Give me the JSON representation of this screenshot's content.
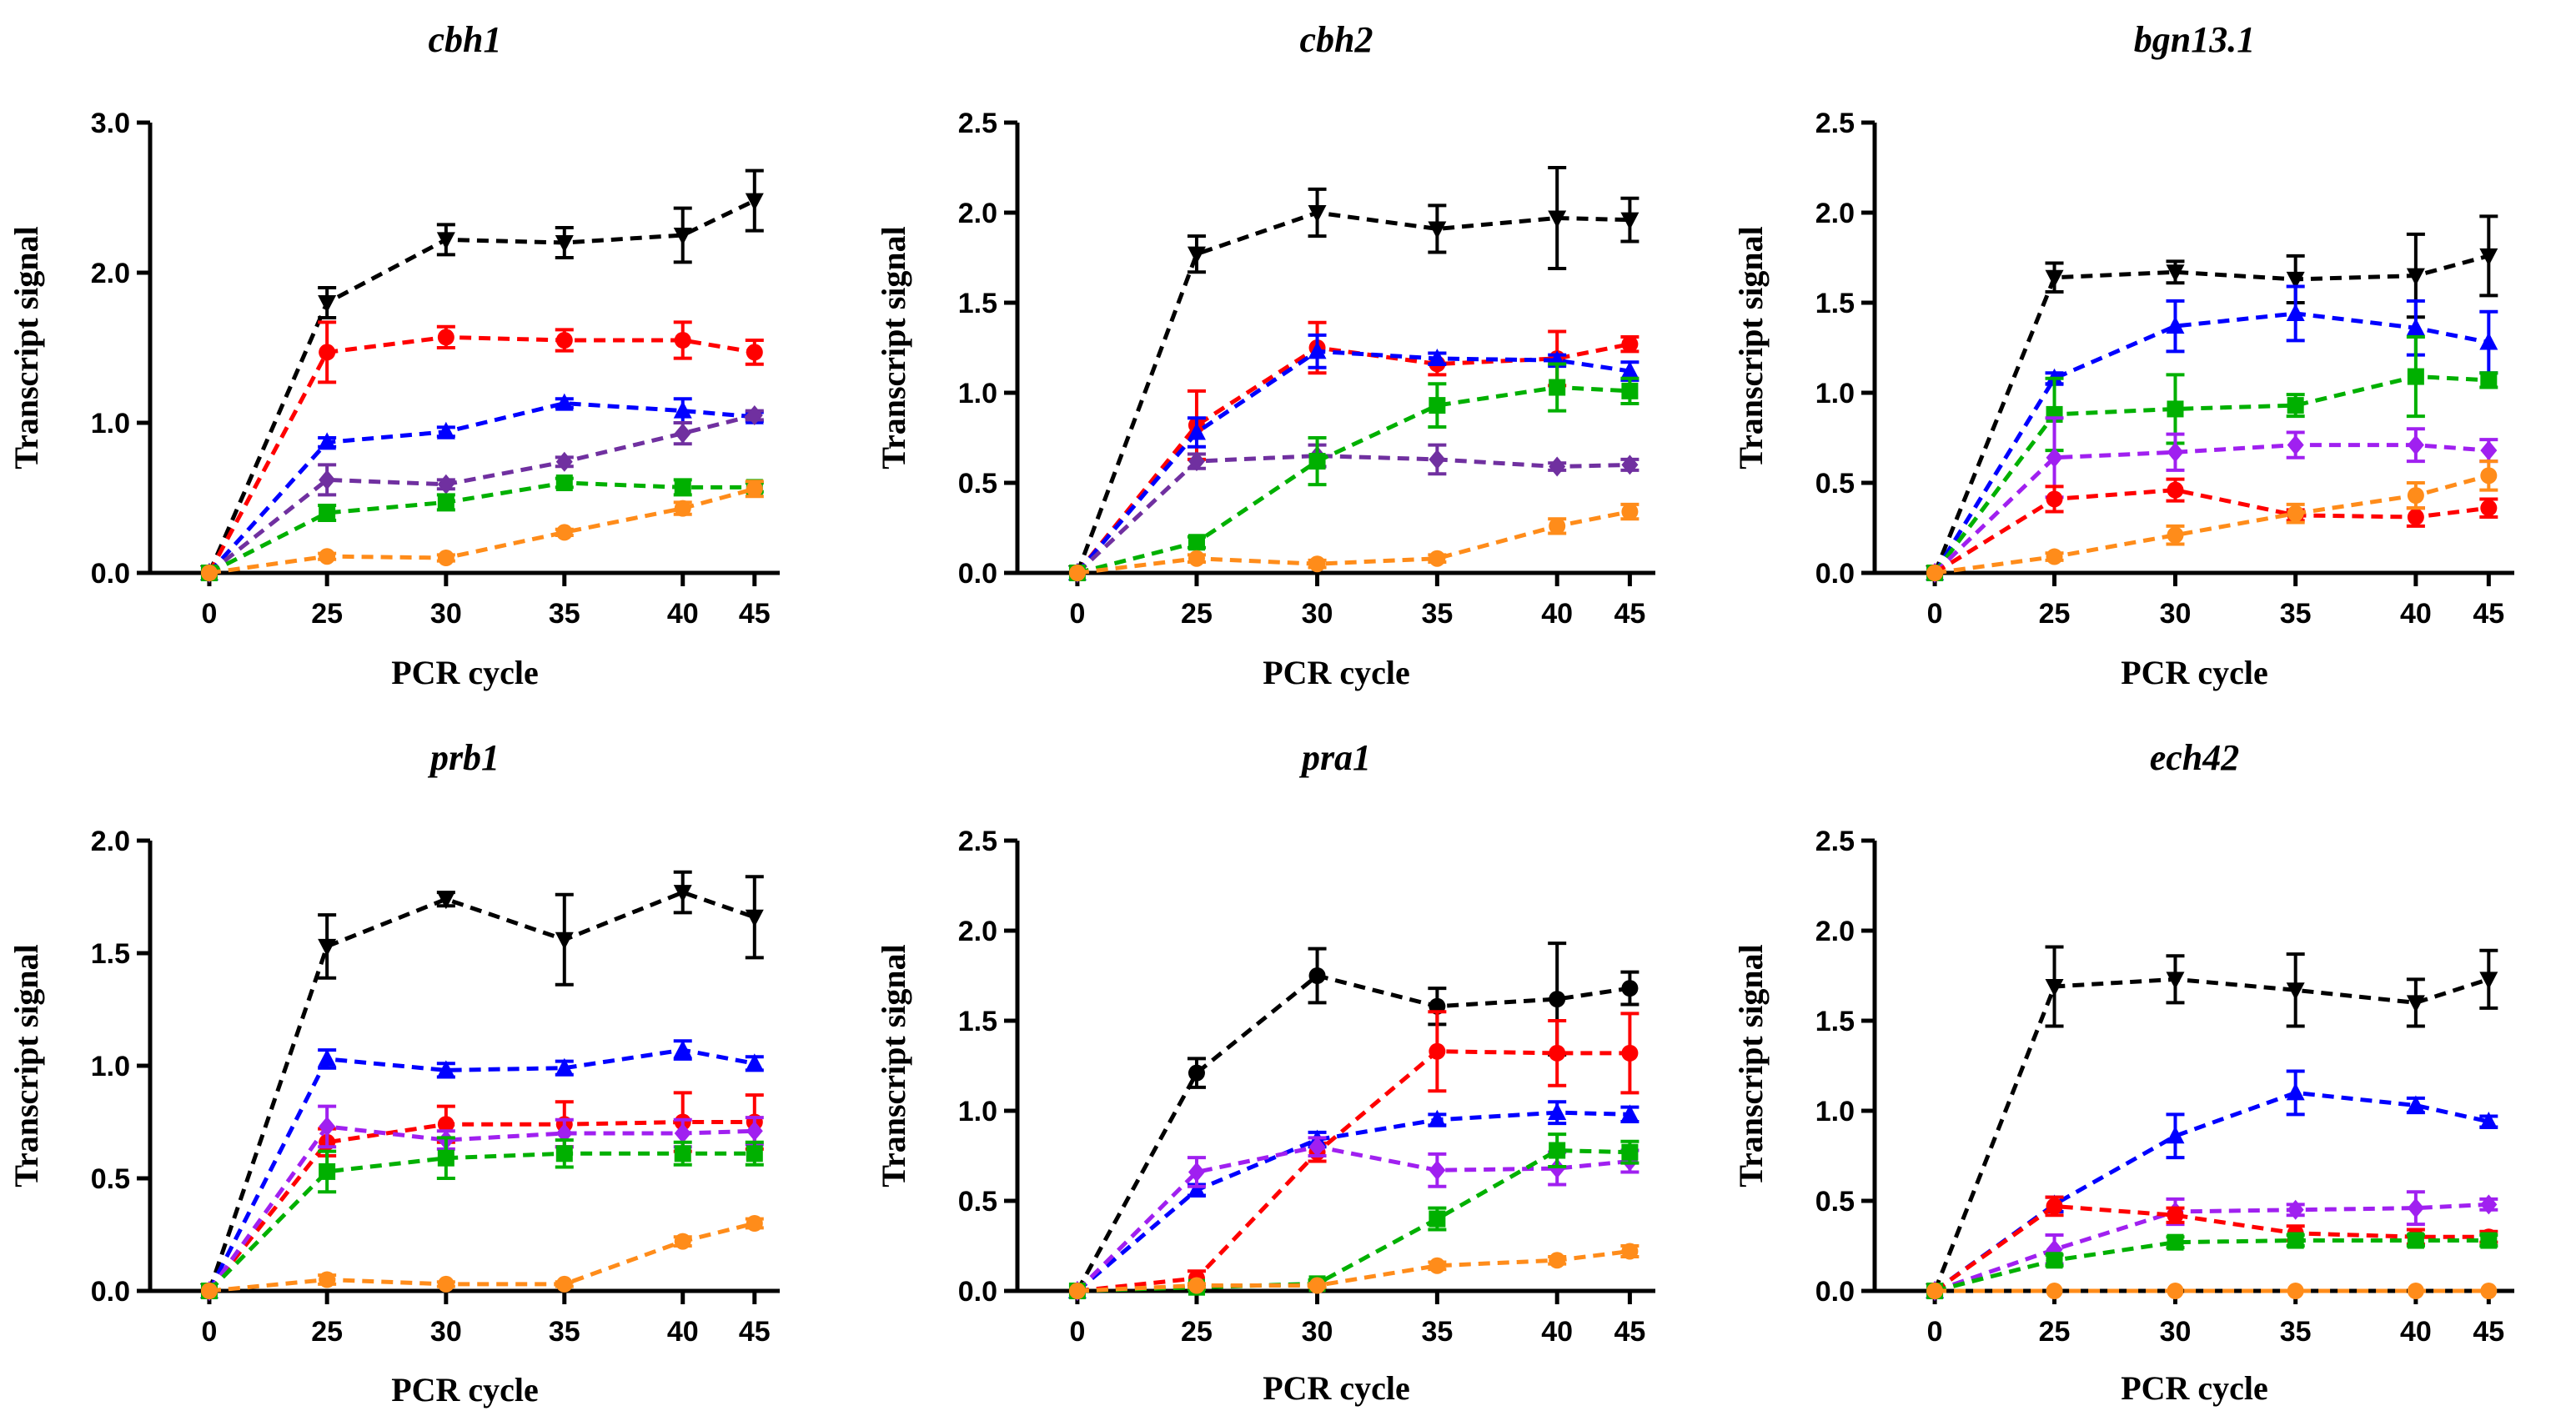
{
  "chart_data": [
    {
      "type": "line",
      "title": "cbh1",
      "xlabel": "PCR cycle",
      "ylabel": "Transcript signal",
      "categories": [
        "0",
        "25",
        "30",
        "35",
        "40",
        "45"
      ],
      "ylim": [
        0,
        3.0
      ],
      "yticks": [
        "0.0",
        "1.0",
        "2.0",
        "3.0"
      ],
      "series": [
        {
          "color": "#000000",
          "marker": "triangle-down",
          "values": [
            0,
            1.8,
            2.22,
            2.2,
            2.25,
            2.48
          ],
          "errors": [
            0,
            0.1,
            0.1,
            0.1,
            0.18,
            0.2
          ]
        },
        {
          "color": "#ff0000",
          "marker": "circle",
          "values": [
            0,
            1.47,
            1.57,
            1.55,
            1.55,
            1.47
          ],
          "errors": [
            0,
            0.2,
            0.07,
            0.07,
            0.12,
            0.08
          ]
        },
        {
          "color": "#0000ff",
          "marker": "triangle-up",
          "values": [
            0,
            0.87,
            0.94,
            1.13,
            1.08,
            1.04
          ],
          "errors": [
            0,
            0.03,
            0.03,
            0.03,
            0.08,
            0.03
          ]
        },
        {
          "color": "#7030a0",
          "marker": "diamond",
          "values": [
            0,
            0.62,
            0.59,
            0.74,
            0.93,
            1.05
          ],
          "errors": [
            0,
            0.1,
            0.03,
            0.03,
            0.07,
            0.03
          ]
        },
        {
          "color": "#00b000",
          "marker": "square",
          "values": [
            0,
            0.4,
            0.47,
            0.6,
            0.57,
            0.57
          ],
          "errors": [
            0,
            0.05,
            0.05,
            0.03,
            0.05,
            0.03
          ]
        },
        {
          "color": "#ff8c1a",
          "marker": "circle",
          "values": [
            0,
            0.11,
            0.1,
            0.27,
            0.43,
            0.56
          ],
          "errors": [
            0,
            0.02,
            0.02,
            0.02,
            0.04,
            0.05
          ]
        }
      ]
    },
    {
      "type": "line",
      "title": "cbh2",
      "xlabel": "PCR cycle",
      "ylabel": "Transcript signal",
      "categories": [
        "0",
        "25",
        "30",
        "35",
        "40",
        "45"
      ],
      "ylim": [
        0,
        2.5
      ],
      "yticks": [
        "0.0",
        "0.5",
        "1.0",
        "1.5",
        "2.0",
        "2.5"
      ],
      "series": [
        {
          "color": "#000000",
          "marker": "triangle-down",
          "values": [
            0,
            1.77,
            2.0,
            1.91,
            1.97,
            1.96
          ],
          "errors": [
            0,
            0.1,
            0.13,
            0.13,
            0.28,
            0.12
          ]
        },
        {
          "color": "#ff0000",
          "marker": "circle",
          "values": [
            0,
            0.82,
            1.25,
            1.16,
            1.19,
            1.27
          ],
          "errors": [
            0,
            0.19,
            0.14,
            0.06,
            0.15,
            0.04
          ]
        },
        {
          "color": "#0000ff",
          "marker": "triangle-up",
          "values": [
            0,
            0.78,
            1.23,
            1.19,
            1.18,
            1.12
          ],
          "errors": [
            0,
            0.08,
            0.09,
            0.03,
            0.03,
            0.05
          ]
        },
        {
          "color": "#7030a0",
          "marker": "diamond",
          "values": [
            0,
            0.62,
            0.65,
            0.63,
            0.59,
            0.6
          ],
          "errors": [
            0,
            0.04,
            0.06,
            0.08,
            0.02,
            0.03
          ]
        },
        {
          "color": "#00b000",
          "marker": "square",
          "values": [
            0,
            0.17,
            0.62,
            0.93,
            1.03,
            1.01
          ],
          "errors": [
            0,
            0.03,
            0.13,
            0.12,
            0.13,
            0.07
          ]
        },
        {
          "color": "#ff8c1a",
          "marker": "circle",
          "values": [
            0,
            0.08,
            0.05,
            0.08,
            0.26,
            0.34
          ],
          "errors": [
            0,
            0.02,
            0.02,
            0.02,
            0.04,
            0.04
          ]
        }
      ]
    },
    {
      "type": "line",
      "title": "bgn13.1",
      "xlabel": "PCR cycle",
      "ylabel": "Transcript signal",
      "categories": [
        "0",
        "25",
        "30",
        "35",
        "40",
        "45"
      ],
      "ylim": [
        0,
        2.5
      ],
      "yticks": [
        "0.0",
        "0.5",
        "1.0",
        "1.5",
        "2.0",
        "2.5"
      ],
      "series": [
        {
          "color": "#000000",
          "marker": "triangle-down",
          "values": [
            0,
            1.64,
            1.67,
            1.63,
            1.65,
            1.76
          ],
          "errors": [
            0,
            0.08,
            0.06,
            0.13,
            0.23,
            0.22
          ]
        },
        {
          "color": "#0000ff",
          "marker": "triangle-up",
          "values": [
            0,
            1.08,
            1.37,
            1.44,
            1.36,
            1.28
          ],
          "errors": [
            0,
            0.03,
            0.14,
            0.15,
            0.15,
            0.17
          ]
        },
        {
          "color": "#00b000",
          "marker": "square",
          "values": [
            0,
            0.88,
            0.91,
            0.93,
            1.09,
            1.07
          ],
          "errors": [
            0,
            0.2,
            0.19,
            0.06,
            0.22,
            0.04
          ]
        },
        {
          "color": "#a020f0",
          "marker": "diamond",
          "values": [
            0,
            0.64,
            0.67,
            0.71,
            0.71,
            0.68
          ],
          "errors": [
            0,
            0.22,
            0.1,
            0.07,
            0.09,
            0.06
          ]
        },
        {
          "color": "#ff0000",
          "marker": "circle",
          "values": [
            0,
            0.41,
            0.46,
            0.32,
            0.31,
            0.36
          ],
          "errors": [
            0,
            0.07,
            0.06,
            0.03,
            0.05,
            0.05
          ]
        },
        {
          "color": "#ff8c1a",
          "marker": "circle",
          "values": [
            0,
            0.09,
            0.21,
            0.33,
            0.43,
            0.54
          ],
          "errors": [
            0,
            0.02,
            0.05,
            0.05,
            0.07,
            0.08
          ]
        }
      ]
    },
    {
      "type": "line",
      "title": "prb1",
      "xlabel": "PCR cycle",
      "ylabel": "Transcript signal",
      "categories": [
        "0",
        "25",
        "30",
        "35",
        "40",
        "45"
      ],
      "ylim": [
        0,
        2.0
      ],
      "yticks": [
        "0.0",
        "0.5",
        "1.0",
        "1.5",
        "2.0"
      ],
      "series": [
        {
          "color": "#000000",
          "marker": "triangle-down",
          "values": [
            0,
            1.53,
            1.74,
            1.56,
            1.77,
            1.66
          ],
          "errors": [
            0,
            0.14,
            0.03,
            0.2,
            0.09,
            0.18
          ]
        },
        {
          "color": "#0000ff",
          "marker": "triangle-up",
          "values": [
            0,
            1.03,
            0.98,
            0.99,
            1.07,
            1.01
          ],
          "errors": [
            0,
            0.04,
            0.03,
            0.03,
            0.04,
            0.03
          ]
        },
        {
          "color": "#ff0000",
          "marker": "circle",
          "values": [
            0,
            0.66,
            0.74,
            0.74,
            0.75,
            0.75
          ],
          "errors": [
            0,
            0.06,
            0.08,
            0.1,
            0.13,
            0.12
          ]
        },
        {
          "color": "#a020f0",
          "marker": "diamond",
          "values": [
            0,
            0.73,
            0.67,
            0.7,
            0.7,
            0.71
          ],
          "errors": [
            0,
            0.09,
            0.04,
            0.06,
            0.06,
            0.06
          ]
        },
        {
          "color": "#00b000",
          "marker": "square",
          "values": [
            0,
            0.53,
            0.59,
            0.61,
            0.61,
            0.61
          ],
          "errors": [
            0,
            0.09,
            0.09,
            0.06,
            0.05,
            0.05
          ]
        },
        {
          "color": "#ff8c1a",
          "marker": "circle",
          "values": [
            0,
            0.05,
            0.03,
            0.03,
            0.22,
            0.3
          ],
          "errors": [
            0,
            0.02,
            0.01,
            0.01,
            0.02,
            0.02
          ]
        }
      ]
    },
    {
      "type": "line",
      "title": "pra1",
      "xlabel": "PCR cycle",
      "ylabel": "Transcript signal",
      "categories": [
        "0",
        "25",
        "30",
        "35",
        "40",
        "45"
      ],
      "ylim": [
        0,
        2.5
      ],
      "yticks": [
        "0.0",
        "0.5",
        "1.0",
        "1.5",
        "2.0",
        "2.5"
      ],
      "series": [
        {
          "color": "#000000",
          "marker": "circle",
          "values": [
            0,
            1.21,
            1.75,
            1.58,
            1.62,
            1.68
          ],
          "errors": [
            0,
            0.08,
            0.15,
            0.1,
            0.31,
            0.09
          ]
        },
        {
          "color": "#ff0000",
          "marker": "circle",
          "values": [
            0,
            0.07,
            0.77,
            1.33,
            1.32,
            1.32
          ],
          "errors": [
            0,
            0.04,
            0.05,
            0.22,
            0.18,
            0.22
          ]
        },
        {
          "color": "#0000ff",
          "marker": "triangle-up",
          "values": [
            0,
            0.56,
            0.84,
            0.95,
            0.99,
            0.98
          ],
          "errors": [
            0,
            0.03,
            0.04,
            0.03,
            0.06,
            0.04
          ]
        },
        {
          "color": "#a020f0",
          "marker": "diamond",
          "values": [
            0,
            0.66,
            0.8,
            0.67,
            0.68,
            0.72
          ],
          "errors": [
            0,
            0.08,
            0.05,
            0.09,
            0.09,
            0.06
          ]
        },
        {
          "color": "#00b000",
          "marker": "square",
          "values": [
            0,
            0.02,
            0.04,
            0.4,
            0.78,
            0.77
          ],
          "errors": [
            0,
            0.01,
            0.02,
            0.06,
            0.09,
            0.06
          ]
        },
        {
          "color": "#ff8c1a",
          "marker": "circle",
          "values": [
            0,
            0.03,
            0.03,
            0.14,
            0.17,
            0.22
          ],
          "errors": [
            0,
            0.01,
            0.01,
            0.02,
            0.02,
            0.03
          ]
        }
      ]
    },
    {
      "type": "line",
      "title": "ech42",
      "xlabel": "PCR cycle",
      "ylabel": "Transcript signal",
      "categories": [
        "0",
        "25",
        "30",
        "35",
        "40",
        "45"
      ],
      "ylim": [
        0,
        2.5
      ],
      "yticks": [
        "0.0",
        "0.5",
        "1.0",
        "1.5",
        "2.0",
        "2.5"
      ],
      "series": [
        {
          "color": "#000000",
          "marker": "triangle-down",
          "values": [
            0,
            1.69,
            1.73,
            1.67,
            1.6,
            1.73
          ],
          "errors": [
            0,
            0.22,
            0.13,
            0.2,
            0.13,
            0.16
          ]
        },
        {
          "color": "#0000ff",
          "marker": "triangle-up",
          "values": [
            0,
            0.48,
            0.86,
            1.1,
            1.03,
            0.94
          ],
          "errors": [
            0,
            0.04,
            0.12,
            0.12,
            0.04,
            0.03
          ]
        },
        {
          "color": "#a020f0",
          "marker": "diamond",
          "values": [
            0,
            0.23,
            0.44,
            0.45,
            0.46,
            0.48
          ],
          "errors": [
            0,
            0.08,
            0.07,
            0.03,
            0.09,
            0.03
          ]
        },
        {
          "color": "#ff0000",
          "marker": "circle",
          "values": [
            0,
            0.47,
            0.42,
            0.32,
            0.3,
            0.3
          ],
          "errors": [
            0,
            0.05,
            0.04,
            0.04,
            0.04,
            0.03
          ]
        },
        {
          "color": "#00b000",
          "marker": "square",
          "values": [
            0,
            0.17,
            0.27,
            0.28,
            0.28,
            0.28
          ],
          "errors": [
            0,
            0.03,
            0.03,
            0.03,
            0.03,
            0.03
          ]
        },
        {
          "color": "#ff8c1a",
          "marker": "circle",
          "values": [
            0,
            0.0,
            0.0,
            0.0,
            0.0,
            0.0
          ],
          "errors": [
            0,
            0,
            0,
            0,
            0,
            0
          ]
        }
      ]
    }
  ]
}
